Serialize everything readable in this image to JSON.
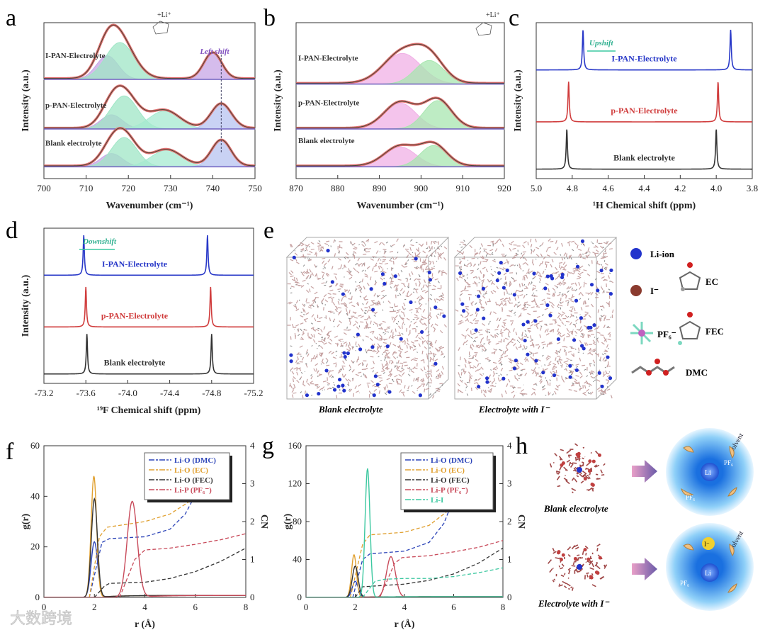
{
  "watermark": "大数跨境",
  "chart_data": [
    {
      "panel": "a",
      "type": "line",
      "xlabel": "Wavenumber (cm⁻¹)",
      "ylabel": "Intensity (a.u.)",
      "xlim": [
        700,
        750
      ],
      "xticks": [
        700,
        710,
        720,
        730,
        740,
        750
      ],
      "ylim": [
        0,
        3.3
      ],
      "annotation": "Left shift",
      "annotation_x": 742,
      "traces": [
        {
          "name": "I-PAN-Electrolyte",
          "offset": 2.1,
          "components": [
            {
              "c": 715,
              "h": 0.5,
              "w": 2.6,
              "color": "#c7a6e6"
            },
            {
              "c": 718,
              "h": 0.78,
              "w": 3.4,
              "color": "#9fe6c6"
            },
            {
              "c": 740,
              "h": 0.55,
              "w": 2.1,
              "color": "#c7a6e6"
            }
          ]
        },
        {
          "name": "p-PAN-Electrolyte",
          "offset": 1.05,
          "components": [
            {
              "c": 716,
              "h": 0.3,
              "w": 2.6,
              "color": "#c7a6e6"
            },
            {
              "c": 719,
              "h": 0.7,
              "w": 3.2,
              "color": "#9fe6c6"
            },
            {
              "c": 728.5,
              "h": 0.38,
              "w": 3.6,
              "color": "#a6ead0"
            },
            {
              "c": 742,
              "h": 0.52,
              "w": 2.4,
              "color": "#b7c3f0"
            }
          ]
        },
        {
          "name": "Blank electrolyte",
          "offset": 0.25,
          "components": [
            {
              "c": 716,
              "h": 0.28,
              "w": 2.6,
              "color": "#c7a6e6"
            },
            {
              "c": 719,
              "h": 0.62,
              "w": 3.0,
              "color": "#9fe6c6"
            },
            {
              "c": 729,
              "h": 0.35,
              "w": 3.6,
              "color": "#a6ead0"
            },
            {
              "c": 742,
              "h": 0.55,
              "w": 2.3,
              "color": "#b7c3f0"
            }
          ]
        }
      ]
    },
    {
      "panel": "b",
      "type": "line",
      "xlabel": "Wavenumber (cm⁻¹)",
      "ylabel": "Intensity (a.u.)",
      "xlim": [
        870,
        920
      ],
      "xticks": [
        870,
        880,
        890,
        900,
        910,
        920
      ],
      "ylim": [
        0,
        3.3
      ],
      "traces": [
        {
          "name": "I-PAN-Electrolyte",
          "offset": 2.0,
          "components": [
            {
              "c": 895.5,
              "h": 0.65,
              "w": 4.5,
              "color": "#f0b0e6"
            },
            {
              "c": 902,
              "h": 0.5,
              "w": 3.5,
              "color": "#a8e6b0"
            }
          ]
        },
        {
          "name": "p-PAN-Electrolyte",
          "offset": 1.05,
          "components": [
            {
              "c": 895,
              "h": 0.55,
              "w": 3.8,
              "color": "#f0b0e6"
            },
            {
              "c": 904,
              "h": 0.6,
              "w": 3.3,
              "color": "#a8e6b0"
            }
          ]
        },
        {
          "name": "Blank electrolyte",
          "offset": 0.25,
          "components": [
            {
              "c": 895,
              "h": 0.42,
              "w": 3.8,
              "color": "#f0b0e6"
            },
            {
              "c": 903,
              "h": 0.45,
              "w": 3.2,
              "color": "#a8e6b0"
            }
          ]
        }
      ]
    },
    {
      "panel": "c",
      "type": "line",
      "xlabel": "¹H Chemical shift (ppm)",
      "ylabel": "Intensity (a.u.)",
      "xlim": [
        5.0,
        3.8
      ],
      "xticks": [
        5.0,
        4.8,
        4.6,
        4.4,
        4.2,
        4.0,
        3.8
      ],
      "ylim": [
        0,
        3.3
      ],
      "annotation": "Upshift",
      "traces": [
        {
          "name": "I-PAN-Electrolyte",
          "color": "#2838c8",
          "offset": 2.3,
          "peaks": [
            4.74,
            3.92
          ]
        },
        {
          "name": "p-PAN-Electrolyte",
          "color": "#d03c3c",
          "offset": 1.2,
          "peaks": [
            4.82,
            3.99
          ]
        },
        {
          "name": "Blank electrolyte",
          "color": "#333333",
          "offset": 0.2,
          "peaks": [
            4.83,
            4.0
          ]
        }
      ]
    },
    {
      "panel": "d",
      "type": "line",
      "xlabel": "¹⁹F Chemical shift (ppm)",
      "ylabel": "Intensity (a.u.)",
      "xlim": [
        -73.2,
        -75.2
      ],
      "xticks": [
        "-73.2",
        "-73.6",
        "-74.0",
        "-74.4",
        "-74.8",
        "-75.2"
      ],
      "ylim": [
        0,
        3.3
      ],
      "annotation": "Downshift",
      "traces": [
        {
          "name": "I-PAN-Electrolyte",
          "color": "#2838c8",
          "offset": 2.3,
          "peaks": [
            -73.58,
            -74.76
          ]
        },
        {
          "name": "p-PAN-Electrolyte",
          "color": "#d03c3c",
          "offset": 1.2,
          "peaks": [
            -73.6,
            -74.79
          ]
        },
        {
          "name": "Blank electrolyte",
          "color": "#333333",
          "offset": 0.2,
          "peaks": [
            -73.61,
            -74.8
          ]
        }
      ]
    },
    {
      "panel": "f",
      "type": "line",
      "xlabel": "r (Å)",
      "ylabel": "g(r)",
      "y2label": "CN",
      "xlim": [
        0,
        8
      ],
      "ylim": [
        0,
        60
      ],
      "y2lim": [
        0,
        4
      ],
      "xticks": [
        0,
        2,
        4,
        6,
        8
      ],
      "yticks": [
        0,
        20,
        40,
        60
      ],
      "y2ticks": [
        0,
        1,
        2,
        3,
        4
      ],
      "series": [
        {
          "name": "Li-O (DMC)",
          "color": "#2c44b8",
          "peak": {
            "r": 2.0,
            "g": 22,
            "w": 0.13
          },
          "cn": [
            [
              1.8,
              0
            ],
            [
              2.3,
              1.45
            ],
            [
              2.6,
              1.55
            ],
            [
              4,
              1.6
            ],
            [
              5,
              1.8
            ],
            [
              5.6,
              2.2
            ],
            [
              6,
              2.7
            ],
            [
              6.3,
              3.3
            ]
          ]
        },
        {
          "name": "Li-O (EC)",
          "color": "#e0a030",
          "peak": {
            "r": 1.98,
            "g": 48,
            "w": 0.11
          },
          "cn": [
            [
              1.8,
              0
            ],
            [
              2.2,
              1.6
            ],
            [
              2.5,
              1.85
            ],
            [
              4,
              2.0
            ],
            [
              5,
              2.2
            ],
            [
              5.7,
              2.5
            ],
            [
              6.2,
              2.85
            ],
            [
              6.6,
              3.3
            ]
          ]
        },
        {
          "name": "Li-O (FEC)",
          "color": "#333333",
          "peak": {
            "r": 2.0,
            "g": 39,
            "w": 0.12
          },
          "cn": [
            [
              2.0,
              0
            ],
            [
              2.4,
              0.3
            ],
            [
              2.6,
              0.37
            ],
            [
              4,
              0.4
            ],
            [
              5,
              0.5
            ],
            [
              6,
              0.68
            ],
            [
              7,
              0.95
            ],
            [
              8,
              1.3
            ]
          ]
        },
        {
          "name": "Li-P (PF₆⁻)",
          "color": "#c84a5a",
          "peak": {
            "r": 3.5,
            "g": 38,
            "w": 0.2
          },
          "cn": [
            [
              3.0,
              0
            ],
            [
              3.6,
              1.0
            ],
            [
              4.0,
              1.25
            ],
            [
              5,
              1.3
            ],
            [
              6,
              1.4
            ],
            [
              7,
              1.52
            ],
            [
              8,
              1.68
            ]
          ]
        }
      ]
    },
    {
      "panel": "g",
      "type": "line",
      "xlabel": "r (Å)",
      "ylabel": "g(r)",
      "y2label": "CN",
      "xlim": [
        0,
        8
      ],
      "ylim": [
        0,
        160
      ],
      "y2lim": [
        0,
        4
      ],
      "xticks": [
        0,
        2,
        4,
        6,
        8
      ],
      "yticks": [
        0,
        40,
        80,
        120,
        160
      ],
      "y2ticks": [
        0,
        1,
        2,
        3,
        4
      ],
      "series": [
        {
          "name": "Li-O (DMC)",
          "color": "#2c44b8",
          "peak": {
            "r": 2.0,
            "g": 17,
            "w": 0.12
          },
          "cn": [
            [
              1.9,
              0
            ],
            [
              2.3,
              1.0
            ],
            [
              2.6,
              1.15
            ],
            [
              4,
              1.22
            ],
            [
              5,
              1.45
            ],
            [
              5.6,
              1.95
            ],
            [
              6,
              2.6
            ],
            [
              6.2,
              3.0
            ]
          ]
        },
        {
          "name": "Li-O (EC)",
          "color": "#e0a030",
          "peak": {
            "r": 1.95,
            "g": 45,
            "w": 0.1
          },
          "cn": [
            [
              1.8,
              0
            ],
            [
              2.3,
              1.4
            ],
            [
              2.6,
              1.65
            ],
            [
              4,
              1.72
            ],
            [
              5,
              1.9
            ],
            [
              5.8,
              2.3
            ],
            [
              6.4,
              2.8
            ]
          ]
        },
        {
          "name": "Li-O (FEC)",
          "color": "#333333",
          "peak": {
            "r": 2.0,
            "g": 33,
            "w": 0.12
          },
          "cn": [
            [
              2.0,
              0
            ],
            [
              2.3,
              0.28
            ],
            [
              4,
              0.35
            ],
            [
              5,
              0.45
            ],
            [
              6,
              0.62
            ],
            [
              7,
              0.9
            ],
            [
              8,
              1.3
            ]
          ]
        },
        {
          "name": "Li-P (PF₆⁻)",
          "color": "#c84a5a",
          "peak": {
            "r": 3.45,
            "g": 43,
            "w": 0.18
          },
          "cn": [
            [
              3.0,
              0
            ],
            [
              3.6,
              0.9
            ],
            [
              3.9,
              1.05
            ],
            [
              5,
              1.1
            ],
            [
              6,
              1.2
            ],
            [
              7,
              1.32
            ],
            [
              8,
              1.5
            ]
          ]
        },
        {
          "name": "Li-I",
          "color": "#3cc8a0",
          "peak": {
            "r": 2.5,
            "g": 136,
            "w": 0.1
          },
          "cn": [
            [
              2.3,
              0
            ],
            [
              2.8,
              0.42
            ],
            [
              3.2,
              0.48
            ],
            [
              4,
              0.5
            ],
            [
              5,
              0.5
            ],
            [
              6,
              0.55
            ],
            [
              7,
              0.65
            ],
            [
              8,
              0.78
            ]
          ]
        }
      ]
    }
  ],
  "panel_labels": [
    "a",
    "b",
    "c",
    "d",
    "e",
    "f",
    "g",
    "h"
  ],
  "e": {
    "box1_caption": "Blank electrolyte",
    "box2_caption": "Electrolyte with I⁻",
    "legend": {
      "li": "Li-ion",
      "iodide": "I⁻",
      "ec": "EC",
      "pf6": "PF₆⁻",
      "fec": "FEC",
      "dmc": "DMC"
    }
  },
  "h": {
    "caption1": "Blank electrolyte",
    "caption2": "Electrolyte with I⁻",
    "li": "Li",
    "pf6": "PF₆",
    "solvent": "solvent",
    "iodide": "I⁻"
  },
  "a_extra": {
    "li_label": "+Li⁺"
  },
  "b_extra": {
    "li_label": "+Li⁺"
  }
}
